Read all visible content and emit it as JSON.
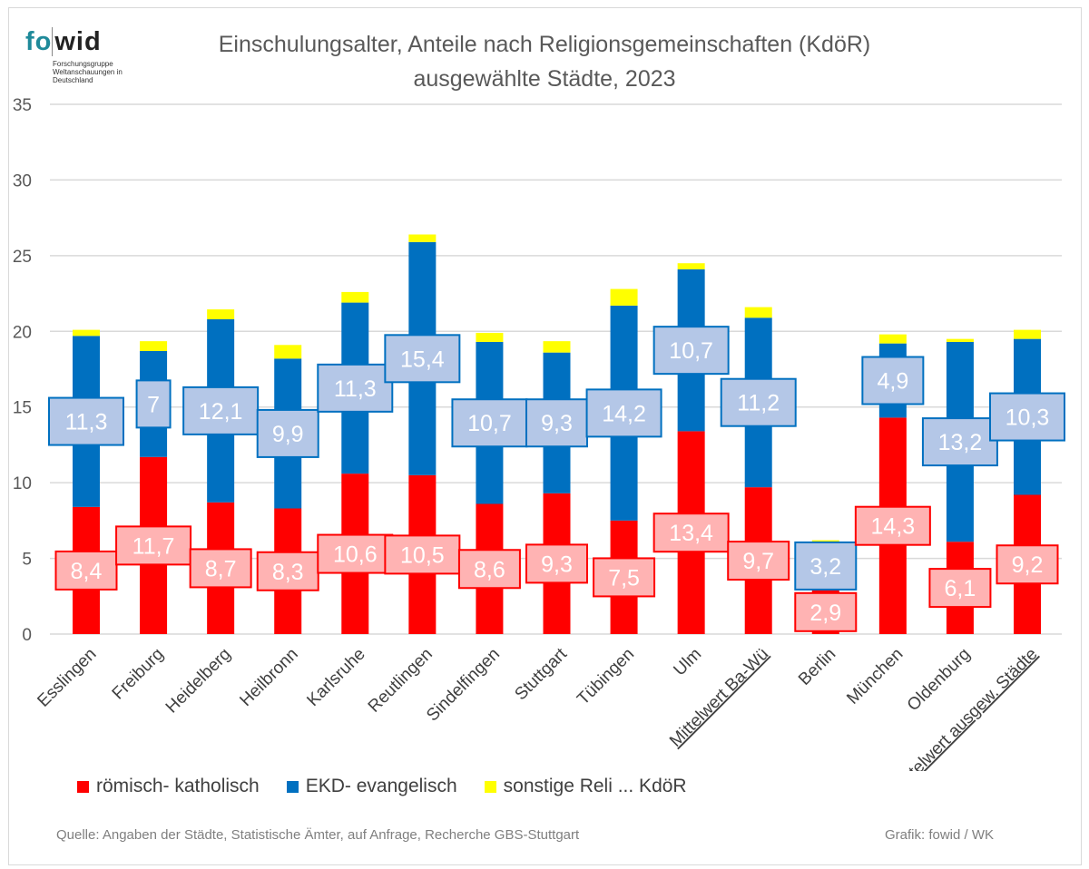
{
  "logo": {
    "text_fo": "fo",
    "text_wid": "wid",
    "subtitle": "Forschungsgruppe Weltanschauungen in Deutschland"
  },
  "title_line1": "Einschulungsalter, Anteile nach Religionsgemeinschaften (KdöR)",
  "title_line2": "ausgewählte Städte, 2023",
  "source": "Quelle: Angaben der Städte, Statistische Ämter, auf Anfrage, Recherche GBS-Stuttgart",
  "credit": "Grafik: fowid / WK",
  "colors": {
    "rk": "#ff0000",
    "ev": "#0070c0",
    "other": "#ffff00",
    "rk_label_bg": "#ffb3b3",
    "ev_label_bg": "#b4c7e7",
    "logo_teal": "#1f8a9a"
  },
  "chart_data": {
    "type": "bar",
    "stacked": true,
    "title": "Einschulungsalter, Anteile nach Religionsgemeinschaften (KdöR) ausgewählte Städte, 2023",
    "ylim": [
      0,
      35
    ],
    "yticks": [
      0,
      5,
      10,
      15,
      20,
      25,
      30,
      35
    ],
    "grid": true,
    "legend_position": "bottom-left",
    "categories": [
      "Esslingen",
      "Freiburg",
      "Heidelberg",
      "Heilbronn",
      "Karlsruhe",
      "Reutlingen",
      "Sindelfingen",
      "Stuttgart",
      "Tübingen",
      "Ulm",
      "Mittelwert Ba-Wü",
      "Berlin",
      "München",
      "Oldenburg",
      "Mittelwert ausgew. Städte"
    ],
    "underlined_categories": [
      "Mittelwert Ba-Wü",
      "Mittelwert ausgew. Städte"
    ],
    "series": [
      {
        "name": "römisch- katholisch",
        "values": [
          8.4,
          11.7,
          8.7,
          8.3,
          10.6,
          10.5,
          8.6,
          9.3,
          7.5,
          13.4,
          9.7,
          2.9,
          14.3,
          6.1,
          9.2
        ],
        "labels": [
          "8,4",
          "11,7",
          "8,7",
          "8,3",
          "10,6",
          "10,5",
          "8,6",
          "9,3",
          "7,5",
          "13,4",
          "9,7",
          "2,9",
          "14,3",
          "6,1",
          "9,2"
        ]
      },
      {
        "name": "EKD- evangelisch",
        "values": [
          11.3,
          7,
          12.1,
          9.9,
          11.3,
          15.4,
          10.7,
          9.3,
          14.2,
          10.7,
          11.2,
          3.2,
          4.9,
          13.2,
          10.3
        ],
        "labels": [
          "11,3",
          "7",
          "12,1",
          "9,9",
          "11,3",
          "15,4",
          "10,7",
          "9,3",
          "14,2",
          "10,7",
          "11,2",
          "3,2",
          "4,9",
          "13,2",
          "10,3"
        ]
      },
      {
        "name": "sonstige Reli ...  KdöR",
        "values": [
          0.4,
          0.65,
          0.65,
          0.9,
          0.7,
          0.5,
          0.6,
          0.75,
          1.1,
          0.4,
          0.7,
          0.1,
          0.6,
          0.2,
          0.6
        ]
      }
    ]
  }
}
